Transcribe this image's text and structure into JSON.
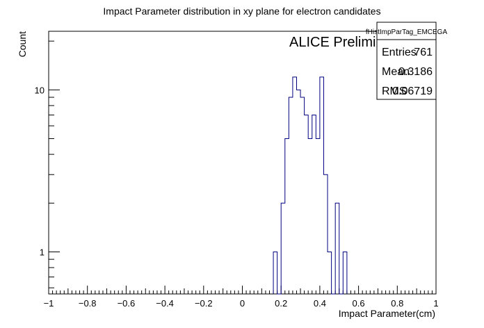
{
  "chart_data": {
    "type": "histogram",
    "title": "Impact Parameter distribution in xy plane for electron candidates",
    "xlabel": "Impact Parameter(cm)",
    "ylabel": "Count",
    "annotation": "ALICE Preliminary",
    "x_scale": "linear",
    "y_scale": "log",
    "xlim": [
      -1,
      1
    ],
    "ylim": [
      0.55,
      23
    ],
    "x_ticks": [
      "−1",
      "−0.8",
      "−0.6",
      "−0.4",
      "−0.2",
      "0",
      "0.2",
      "0.4",
      "0.6",
      "0.8",
      "1"
    ],
    "x_tick_values": [
      -1,
      -0.8,
      -0.6,
      -0.4,
      -0.2,
      0,
      0.2,
      0.4,
      0.6,
      0.8,
      1
    ],
    "y_ticks": [
      "1",
      "10"
    ],
    "y_tick_values": [
      1,
      10
    ],
    "line_color": "#000080",
    "series": [
      {
        "bins_low_edges": [
          0.16,
          0.18,
          0.2,
          0.22,
          0.24,
          0.26,
          0.28,
          0.3,
          0.32,
          0.34,
          0.36,
          0.38,
          0.4,
          0.42,
          0.44,
          0.46,
          0.48,
          0.5,
          0.52
        ],
        "bin_width": 0.02,
        "values": [
          1,
          0,
          2,
          5,
          9,
          12,
          10,
          9,
          7,
          5,
          7,
          5,
          12,
          3,
          1,
          0,
          2,
          0,
          1
        ]
      }
    ],
    "stats_box": {
      "name": "fHistImpParTag_EMCEGA",
      "rows": [
        {
          "label": "Entries",
          "value": "761"
        },
        {
          "label": "Mean",
          "value": "0.3186"
        },
        {
          "label": "RMS",
          "value": "0.06719"
        }
      ]
    }
  }
}
